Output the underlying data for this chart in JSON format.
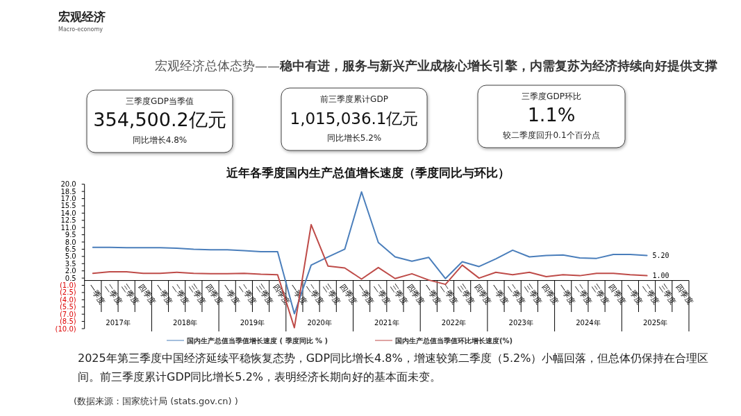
{
  "chart_data": [
    {
      "type": "other",
      "title": "宏观经济",
      "subtitle": "Macro-economy",
      "annotations": [
        "宏观经济总体态势——",
        "稳中有进，服务与新兴产业成核心增长引擎，内需复苏为经济持续向好提供支撑",
        "三季度GDP当季值",
        "354,500.2亿元",
        "同比增长4.8%",
        "前三季度累计GDP",
        "1,015,036.1亿元",
        "同比增长5.2%",
        "三季度GDP环比",
        "1.1%",
        "较二季度回升0.1个百分点"
      ]
    },
    {
      "type": "line",
      "title": "近年各季度国内生产总值增长速度（季度同比与环比）",
      "categories": [
        "一季度",
        "二季度",
        "三季度",
        "四季度",
        "一季度",
        "二季度",
        "三季度",
        "四季度",
        "一季度",
        "二季度",
        "三季度",
        "四季度",
        "一季度",
        "二季度",
        "三季度",
        "四季度",
        "一季度",
        "二季度",
        "三季度",
        "四季度",
        "一季度",
        "二季度",
        "三季度",
        "四季度",
        "一季度",
        "二季度",
        "三季度",
        "四季度",
        "一季度",
        "二季度",
        "三季度",
        "四季度",
        "一季度",
        "二季度",
        "三季度",
        "四季度"
      ],
      "series": [
        {
          "name": "国内生产总值当季值增长速度 ( 季度同比 % )",
          "color": "#4a7ebb",
          "values": [
            6.9,
            6.9,
            6.8,
            6.8,
            6.8,
            6.7,
            6.5,
            6.4,
            6.4,
            6.2,
            6.0,
            6.0,
            -6.9,
            3.2,
            4.9,
            6.5,
            18.4,
            7.9,
            4.9,
            4.0,
            4.8,
            0.4,
            3.9,
            2.9,
            4.5,
            6.3,
            4.9,
            5.2,
            5.3,
            4.7,
            4.6,
            5.4,
            5.4,
            5.2,
            null,
            null
          ],
          "value_labels": [
            null,
            null,
            null,
            null,
            null,
            null,
            null,
            null,
            null,
            null,
            null,
            null,
            null,
            null,
            null,
            null,
            null,
            null,
            null,
            null,
            null,
            null,
            null,
            null,
            null,
            null,
            null,
            null,
            null,
            null,
            null,
            null,
            null,
            "5.20",
            null,
            null
          ]
        },
        {
          "name": "国内生产总值当季值环比增长速度(%)",
          "color": "#be4b48",
          "values": [
            1.5,
            1.8,
            1.8,
            1.5,
            1.5,
            1.7,
            1.5,
            1.4,
            1.4,
            1.5,
            1.3,
            1.2,
            -9.8,
            11.6,
            3.0,
            2.6,
            0.3,
            2.7,
            0.4,
            1.4,
            0.1,
            -0.8,
            3.2,
            0.5,
            1.7,
            1.2,
            1.7,
            0.8,
            1.2,
            1.0,
            1.5,
            1.5,
            1.2,
            1.0,
            null,
            null
          ],
          "value_labels": [
            null,
            null,
            null,
            null,
            null,
            null,
            null,
            null,
            null,
            null,
            null,
            null,
            null,
            null,
            null,
            null,
            null,
            null,
            null,
            null,
            null,
            null,
            null,
            null,
            null,
            null,
            null,
            null,
            null,
            null,
            null,
            null,
            null,
            "1.00",
            null,
            null
          ]
        }
      ],
      "ylim": [
        -10,
        20
      ],
      "yticks": [
        {
          "value": 20,
          "label": "20.0"
        },
        {
          "value": 18.5,
          "label": "18.5"
        },
        {
          "value": 17,
          "label": "17.0"
        },
        {
          "value": 15.5,
          "label": "15.5"
        },
        {
          "value": 14,
          "label": "14.0"
        },
        {
          "value": 12.5,
          "label": "12.5"
        },
        {
          "value": 11,
          "label": "11.0"
        },
        {
          "value": 9.5,
          "label": "9.5"
        },
        {
          "value": 8,
          "label": "8.0"
        },
        {
          "value": 6.5,
          "label": "6.5"
        },
        {
          "value": 5,
          "label": "5.0"
        },
        {
          "value": 3.5,
          "label": "3.5"
        },
        {
          "value": 2,
          "label": "2.0"
        },
        {
          "value": 0.5,
          "label": "0.5"
        },
        {
          "value": -1,
          "label": "(1.0)"
        },
        {
          "value": -2.5,
          "label": "(2.5)"
        },
        {
          "value": -4,
          "label": "(4.0)"
        },
        {
          "value": -5.5,
          "label": "(5.5)"
        },
        {
          "value": -7,
          "label": "(7.0)"
        },
        {
          "value": -8.5,
          "label": "(8.5)"
        },
        {
          "value": -10,
          "label": "(10.0)"
        }
      ],
      "grid": false,
      "legend": "bottom",
      "marker": "none",
      "line_style": "solid",
      "annotations": [
        {
          "text": "2017年"
        },
        {
          "text": "2018年"
        },
        {
          "text": "2019年"
        },
        {
          "text": "2020年"
        },
        {
          "text": "2021年"
        },
        {
          "text": "2022年"
        },
        {
          "text": "2023年"
        },
        {
          "text": "2024年"
        },
        {
          "text": "2025年"
        },
        "2025年第三季度中国经济延续平稳恢复态势，GDP同比增长4.8%，增速较第二季度（5.2%）小幅回落，但总体仍保持在合理区间。前三季度累计GDP同比增长5.2%，表明经济长期向好的基本面未变。",
        "(数据来源：国家统计局 (stats.gov.cn) )"
      ]
    }
  ]
}
